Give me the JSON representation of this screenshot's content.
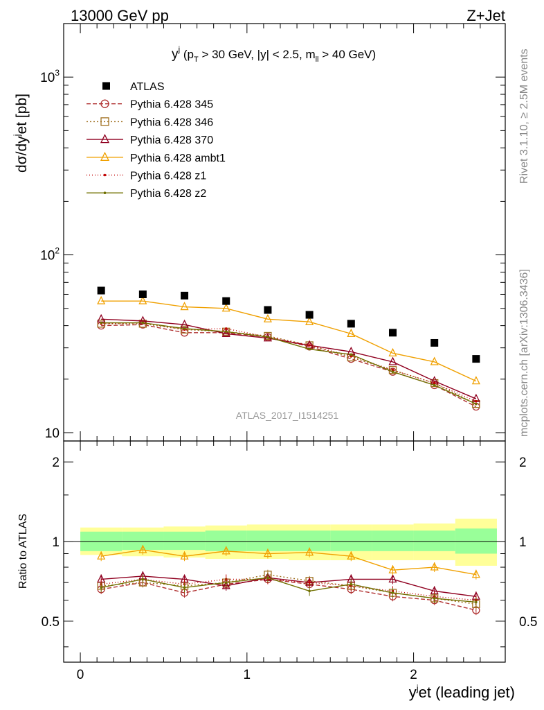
{
  "header": {
    "left": "13000 GeV pp",
    "right": "Z+Jet",
    "plot_label": "yʲ (p_T > 30 GeV, |y| < 2.5, m_ll > 40 GeV)",
    "watermark": "ATLAS_2017_I1514251",
    "side_top": "Rivet 3.1.10, ≥ 2.5M events",
    "side_bottom": "mcplots.cern.ch [arXiv:1306.3436]"
  },
  "title_parts": {
    "main": "y",
    "sup": "j",
    "open": " (p",
    "sub_t": "T",
    "cut": " > 30 GeV, |y| < 2.5, m",
    "sub_ll": "ll",
    "close": " > 40 GeV)"
  },
  "ylabel_parts": {
    "a": "dσ/dy",
    "sup1": "j",
    "b": "et [pb]"
  },
  "xlabel_parts": {
    "a": "y",
    "sup": "j",
    "b": "et (leading jet)"
  },
  "ratio_ylabel": "Ratio to ATLAS",
  "chart_data": {
    "type": "scatter",
    "x": [
      0.125,
      0.375,
      0.625,
      0.875,
      1.125,
      1.375,
      1.625,
      1.875,
      2.125,
      2.375
    ],
    "x_edges": [
      0.0,
      0.25,
      0.5,
      0.75,
      1.0,
      1.25,
      1.5,
      1.75,
      2.0,
      2.25,
      2.5
    ],
    "xlim": [
      -0.1,
      2.55
    ],
    "xticks": [
      "0",
      "1",
      "2"
    ],
    "main_ylim": [
      10,
      2000
    ],
    "main_yscale": "log",
    "main_yticks": [
      "10",
      "10²",
      "10³"
    ],
    "ratio_ylim": [
      0.35,
      2.4
    ],
    "ratio_yticks": [
      "0.5",
      "1",
      "2"
    ],
    "data": {
      "name": "ATLAS",
      "values": [
        63,
        60,
        59,
        55,
        49,
        46,
        41,
        36.5,
        32,
        26
      ]
    },
    "band_green": [
      [
        0.92,
        1.09
      ],
      [
        0.93,
        1.09
      ],
      [
        0.93,
        1.09
      ],
      [
        0.92,
        1.1
      ],
      [
        0.92,
        1.1
      ],
      [
        0.92,
        1.1
      ],
      [
        0.92,
        1.1
      ],
      [
        0.92,
        1.1
      ],
      [
        0.92,
        1.1
      ],
      [
        0.9,
        1.12
      ]
    ],
    "band_yellow": [
      [
        0.89,
        1.13
      ],
      [
        0.88,
        1.13
      ],
      [
        0.87,
        1.14
      ],
      [
        0.86,
        1.15
      ],
      [
        0.86,
        1.16
      ],
      [
        0.85,
        1.16
      ],
      [
        0.85,
        1.16
      ],
      [
        0.85,
        1.16
      ],
      [
        0.85,
        1.17
      ],
      [
        0.81,
        1.22
      ]
    ],
    "series": [
      {
        "name": "Pythia 6.428 345",
        "color": "#b03030",
        "dash": "6,3",
        "marker": "circle",
        "values": [
          40,
          40.5,
          36.5,
          36.5,
          34.5,
          30.5,
          26,
          22,
          18.5,
          14
        ],
        "ratio": [
          0.66,
          0.7,
          0.64,
          0.69,
          0.72,
          0.69,
          0.66,
          0.62,
          0.6,
          0.55
        ]
      },
      {
        "name": "Pythia 6.428 346",
        "color": "#a07020",
        "dash": "2,3",
        "marker": "square",
        "values": [
          41,
          41,
          38,
          37,
          35,
          31,
          26.5,
          22.5,
          19,
          14.5
        ],
        "ratio": [
          0.68,
          0.7,
          0.68,
          0.7,
          0.75,
          0.71,
          0.68,
          0.64,
          0.61,
          0.58
        ]
      },
      {
        "name": "Pythia 6.428 370",
        "color": "#900020",
        "dash": "",
        "marker": "triangle",
        "values": [
          43.5,
          42.5,
          40.5,
          36,
          34,
          31,
          28.5,
          25,
          19.5,
          15.5
        ],
        "ratio": [
          0.72,
          0.74,
          0.72,
          0.68,
          0.73,
          0.7,
          0.72,
          0.72,
          0.65,
          0.62
        ]
      },
      {
        "name": "Pythia 6.428 ambt1",
        "color": "#f0a000",
        "dash": "",
        "marker": "triangle",
        "values": [
          55,
          55,
          51,
          50,
          43.5,
          42,
          36,
          28,
          25,
          19.5
        ],
        "ratio": [
          0.88,
          0.93,
          0.88,
          0.92,
          0.9,
          0.91,
          0.88,
          0.78,
          0.8,
          0.75
        ]
      },
      {
        "name": "Pythia 6.428 z1",
        "color": "#c00000",
        "dash": "1,3",
        "marker": "dot",
        "values": [
          41,
          41.5,
          38,
          38.5,
          34.5,
          31,
          27,
          22.5,
          19,
          15
        ],
        "ratio": [
          0.69,
          0.72,
          0.69,
          0.72,
          0.72,
          0.7,
          0.68,
          0.65,
          0.62,
          0.6
        ]
      },
      {
        "name": "Pythia 6.428 z2",
        "color": "#707000",
        "dash": "",
        "marker": "dot",
        "values": [
          41.5,
          41.5,
          38.5,
          37,
          34.5,
          29.5,
          27.5,
          22,
          18.5,
          14.5
        ],
        "ratio": [
          0.67,
          0.72,
          0.67,
          0.7,
          0.73,
          0.65,
          0.69,
          0.64,
          0.61,
          0.59
        ]
      }
    ]
  }
}
